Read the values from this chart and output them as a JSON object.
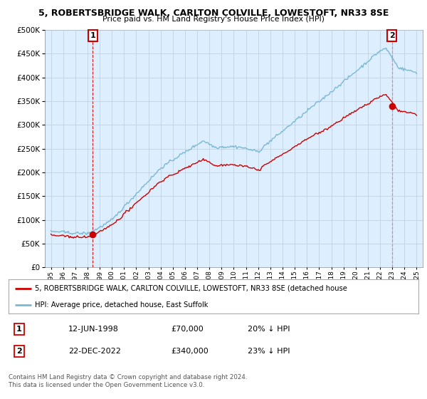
{
  "title": "5, ROBERTSBRIDGE WALK, CARLTON COLVILLE, LOWESTOFT, NR33 8SE",
  "subtitle": "Price paid vs. HM Land Registry's House Price Index (HPI)",
  "ylim": [
    0,
    500000
  ],
  "yticks": [
    0,
    50000,
    100000,
    150000,
    200000,
    250000,
    300000,
    350000,
    400000,
    450000,
    500000
  ],
  "xlim_start": 1994.5,
  "xlim_end": 2025.5,
  "hpi_color": "#7bb8d4",
  "price_color": "#cc0000",
  "chart_bg": "#ddeeff",
  "point1_x": 1998.44,
  "point1_y": 70000,
  "point2_x": 2022.97,
  "point2_y": 340000,
  "legend_label1": "5, ROBERTSBRIDGE WALK, CARLTON COLVILLE, LOWESTOFT, NR33 8SE (detached house",
  "legend_label2": "HPI: Average price, detached house, East Suffolk",
  "table_row1": [
    "1",
    "12-JUN-1998",
    "£70,000",
    "20% ↓ HPI"
  ],
  "table_row2": [
    "2",
    "22-DEC-2022",
    "£340,000",
    "23% ↓ HPI"
  ],
  "footer": "Contains HM Land Registry data © Crown copyright and database right 2024.\nThis data is licensed under the Open Government Licence v3.0.",
  "background_color": "#ffffff",
  "grid_color": "#bbccdd"
}
